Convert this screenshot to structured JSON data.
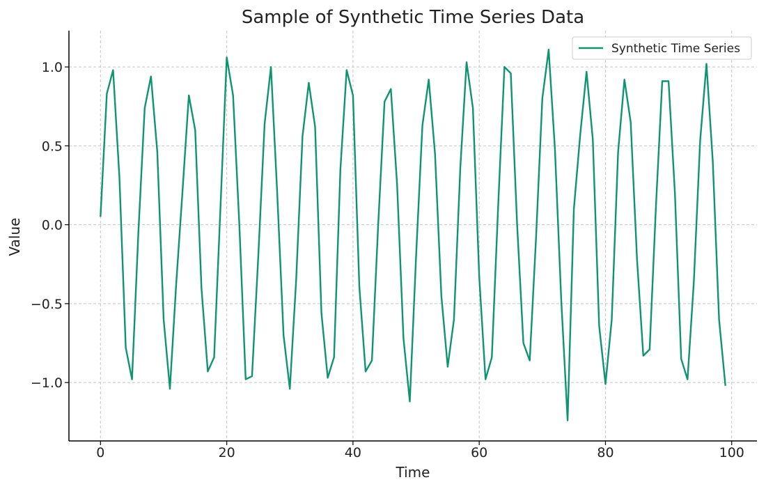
{
  "chart_data": {
    "type": "line",
    "title": "Sample of Synthetic Time Series Data",
    "xlabel": "Time",
    "ylabel": "Value",
    "xlim": [
      -5,
      104
    ],
    "ylim": [
      -1.37,
      1.23
    ],
    "xticks": [
      0,
      20,
      40,
      60,
      80,
      100
    ],
    "xtick_labels": [
      "0",
      "20",
      "40",
      "60",
      "80",
      "100"
    ],
    "yticks": [
      1.0,
      0.5,
      0.0,
      -0.5,
      -1.0
    ],
    "ytick_labels": [
      "1.0",
      "0.5",
      "0.0",
      "−0.5",
      "−1.0"
    ],
    "grid": true,
    "legend_position": "upper right",
    "series": [
      {
        "name": "Synthetic Time Series",
        "color": "#0f9470",
        "x": [
          0,
          1,
          2,
          3,
          4,
          5,
          6,
          7,
          8,
          9,
          10,
          11,
          12,
          13,
          14,
          15,
          16,
          17,
          18,
          19,
          20,
          21,
          22,
          23,
          24,
          25,
          26,
          27,
          28,
          29,
          30,
          31,
          32,
          33,
          34,
          35,
          36,
          37,
          38,
          39,
          40,
          41,
          42,
          43,
          44,
          45,
          46,
          47,
          48,
          49,
          50,
          51,
          52,
          53,
          54,
          55,
          56,
          57,
          58,
          59,
          60,
          61,
          62,
          63,
          64,
          65,
          66,
          67,
          68,
          69,
          70,
          71,
          72,
          73,
          74,
          75,
          76,
          77,
          78,
          79,
          80,
          81,
          82,
          83,
          84,
          85,
          86,
          87,
          88,
          89,
          90,
          91,
          92,
          93,
          94,
          95,
          96,
          97,
          98,
          99
        ],
        "y": [
          0.05,
          0.83,
          0.98,
          0.3,
          -0.78,
          -0.98,
          -0.05,
          0.74,
          0.94,
          0.46,
          -0.6,
          -1.04,
          -0.37,
          0.22,
          0.82,
          0.6,
          -0.4,
          -0.93,
          -0.84,
          0.1,
          1.06,
          0.82,
          0.0,
          -0.98,
          -0.96,
          -0.2,
          0.64,
          1.0,
          0.2,
          -0.7,
          -1.04,
          -0.35,
          0.56,
          0.9,
          0.62,
          -0.56,
          -0.97,
          -0.84,
          0.35,
          0.98,
          0.82,
          -0.39,
          -0.93,
          -0.86,
          0.0,
          0.78,
          0.86,
          0.25,
          -0.72,
          -1.12,
          -0.2,
          0.63,
          0.92,
          0.45,
          -0.45,
          -0.9,
          -0.6,
          0.36,
          1.03,
          0.74,
          -0.33,
          -0.98,
          -0.84,
          0.12,
          1.0,
          0.96,
          0.0,
          -0.75,
          -0.86,
          -0.08,
          0.8,
          1.11,
          0.48,
          -0.48,
          -1.24,
          0.1,
          0.57,
          0.97,
          0.54,
          -0.64,
          -1.01,
          -0.6,
          0.46,
          0.92,
          0.65,
          -0.22,
          -0.83,
          -0.79,
          0.12,
          0.91,
          0.91,
          0.2,
          -0.85,
          -0.98,
          -0.36,
          0.53,
          1.02,
          0.4,
          -0.6,
          -1.02
        ]
      }
    ]
  }
}
